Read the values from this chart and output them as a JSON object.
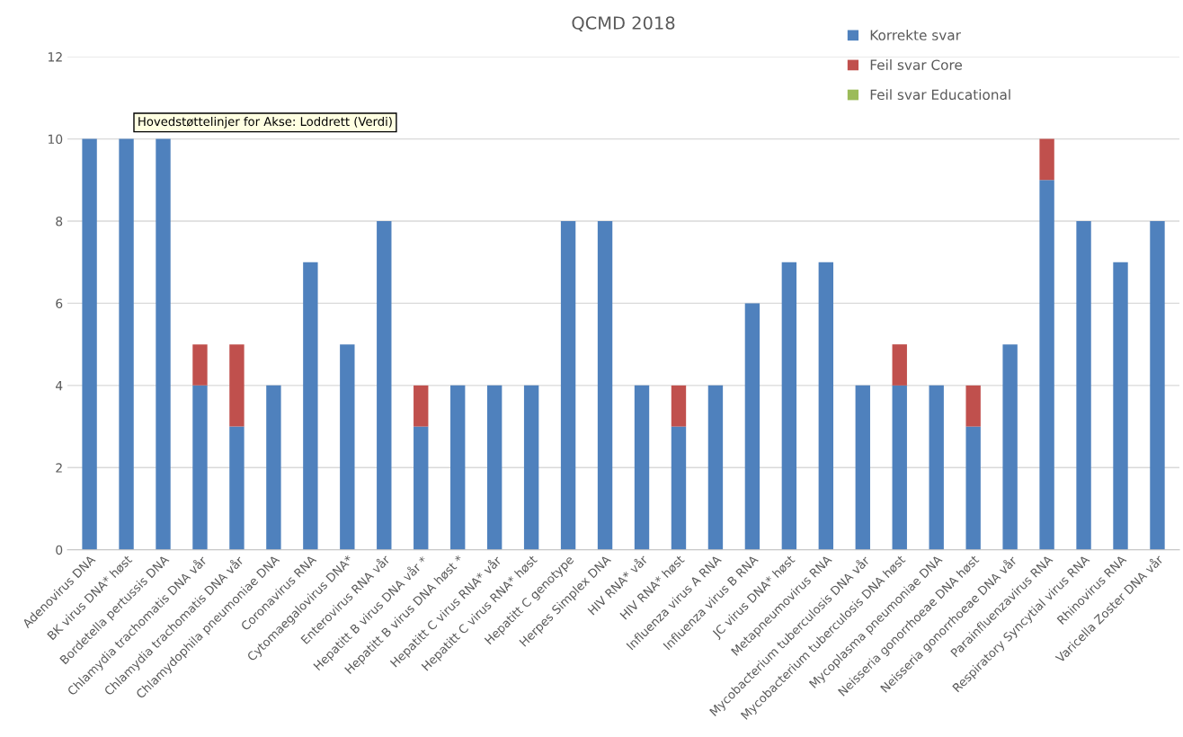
{
  "chart_data": {
    "type": "bar",
    "title": "QCMD 2018",
    "stacked": true,
    "categories": [
      "Adenovirus DNA",
      "BK virus DNA* høst",
      "Bordetella pertussis DNA",
      "Chlamydia trachomatis DNA vår",
      "Chlamydia trachomatis DNA vår",
      "Chlamydophila pneumoniae DNA",
      "Coronavirus RNA",
      "Cytomaegalovirus DNA*",
      "Enterovirus RNA vår",
      "Hepatitt B virus DNA vår *",
      "Hepatitt B virus DNA høst *",
      "Hepatitt C virus RNA* vår",
      "Hepatitt C virus RNA* høst",
      "Hepatitt C genotype",
      "Herpes Simplex DNA",
      "HIV RNA* vår",
      "HIV RNA* høst",
      "Influenza virus A RNA",
      "Influenza virus B RNA",
      "JC virus DNA* høst",
      "Metapneumovirus RNA",
      "Mycobacterium tuberculosis DNA vår",
      "Mycobacterium tuberculosis DNA høst",
      "Mycoplasma pneumoniae DNA",
      "Neisseria gonorrhoeae DNA høst",
      "Neisseria gonorrhoeae DNA vår",
      "Parainfluenzavirus RNA",
      "Respiratory Syncytial virus RNA",
      "Rhinovirus RNA",
      "Varicella Zoster DNA vår"
    ],
    "series": [
      {
        "name": "Korrekte svar",
        "color": "#4f81bd",
        "values": [
          10,
          10,
          10,
          4,
          3,
          4,
          7,
          5,
          8,
          3,
          4,
          4,
          4,
          8,
          8,
          4,
          3,
          4,
          6,
          7,
          7,
          4,
          4,
          4,
          3,
          5,
          9,
          8,
          7,
          8
        ]
      },
      {
        "name": "Feil svar Core",
        "color": "#c0504d",
        "values": [
          0,
          0,
          0,
          1,
          2,
          0,
          0,
          0,
          0,
          1,
          0,
          0,
          0,
          0,
          0,
          0,
          1,
          0,
          0,
          0,
          0,
          0,
          1,
          0,
          1,
          0,
          1,
          0,
          0,
          0
        ]
      },
      {
        "name": "Feil svar Educational",
        "color": "#9bbb59",
        "values": [
          0,
          0,
          0,
          0,
          0,
          0,
          0,
          0,
          0,
          0,
          0,
          0,
          0,
          0,
          0,
          0,
          0,
          0,
          0,
          0,
          0,
          0,
          0,
          0,
          0,
          0,
          0,
          0,
          0,
          0
        ]
      }
    ],
    "ylim": [
      0,
      12
    ],
    "yticks": [
      0,
      2,
      4,
      6,
      8,
      10,
      12
    ],
    "grid": "y",
    "legend": "top right",
    "annotations": [
      "Hovedstøttelinjer for Akse: Loddrett (Verdi)"
    ]
  }
}
